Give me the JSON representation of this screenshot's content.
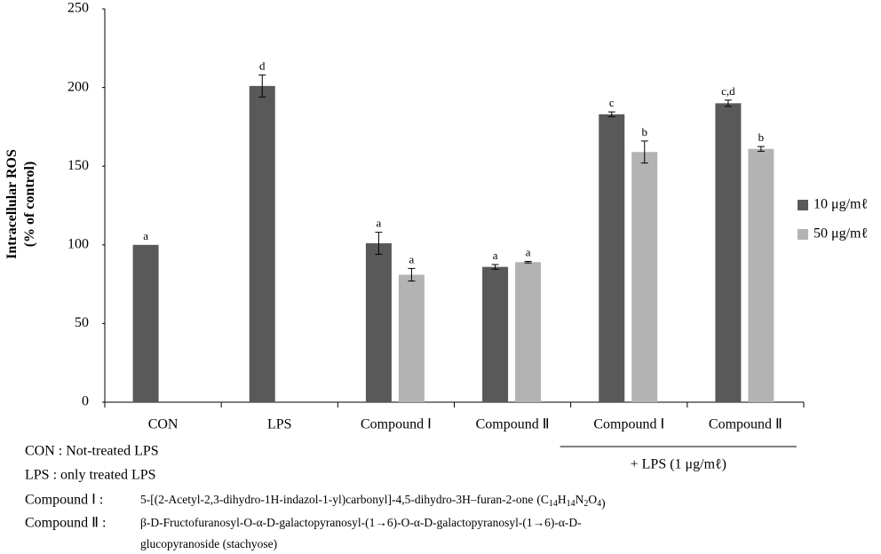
{
  "chart_data": {
    "type": "bar",
    "y_label_lines": [
      "Intracellular  ROS",
      "(% of control)"
    ],
    "categories": [
      "CON",
      "LPS",
      "Compound Ⅰ",
      "Compound Ⅱ",
      "Compound Ⅰ",
      "Compound Ⅱ"
    ],
    "series": [
      {
        "name": "10 μg/mℓ",
        "color": "#595959",
        "values": [
          100,
          201,
          101,
          86,
          183,
          190
        ],
        "errors": [
          0,
          7,
          7,
          1.5,
          1.5,
          2
        ],
        "letters": [
          "a",
          "d",
          "a",
          "a",
          "c",
          "c,d"
        ]
      },
      {
        "name": "50 μg/mℓ",
        "color": "#b3b3b3",
        "values": [
          null,
          null,
          81,
          89,
          159,
          161
        ],
        "errors": [
          null,
          null,
          4,
          0.5,
          7,
          1.5
        ],
        "letters": [
          null,
          null,
          "a",
          "a",
          "b",
          "b"
        ]
      }
    ],
    "ylim": [
      0,
      250
    ],
    "yticks": [
      0,
      50,
      100,
      150,
      200,
      250
    ],
    "grid": false,
    "group_bracket": {
      "label": "+ LPS  (1 μg/mℓ)",
      "from": 4,
      "to": 5
    },
    "notes": [
      {
        "term": "CON : Not-treated LPS"
      },
      {
        "term": "LPS : only treated LPS"
      },
      {
        "term": "Compound Ⅰ :",
        "lines": [
          "5-[(2-Acetyl-2,3-dihydro-1H-indazol-1-yl)carbonyl]-4,5-dihydro-3H–furan-2-one"
        ],
        "formula": [
          "C",
          "14",
          "H",
          "14",
          "N",
          "2",
          "O",
          "4"
        ]
      },
      {
        "term": "Compound Ⅱ :",
        "lines": [
          "β-D-Fructofuranosyl-O-α-D-galactopyranosyl-(1→6)-O-α-D-galactopyranosyl-(1→6)-α-D-",
          "glucopyranoside (stachyose)"
        ]
      }
    ]
  }
}
